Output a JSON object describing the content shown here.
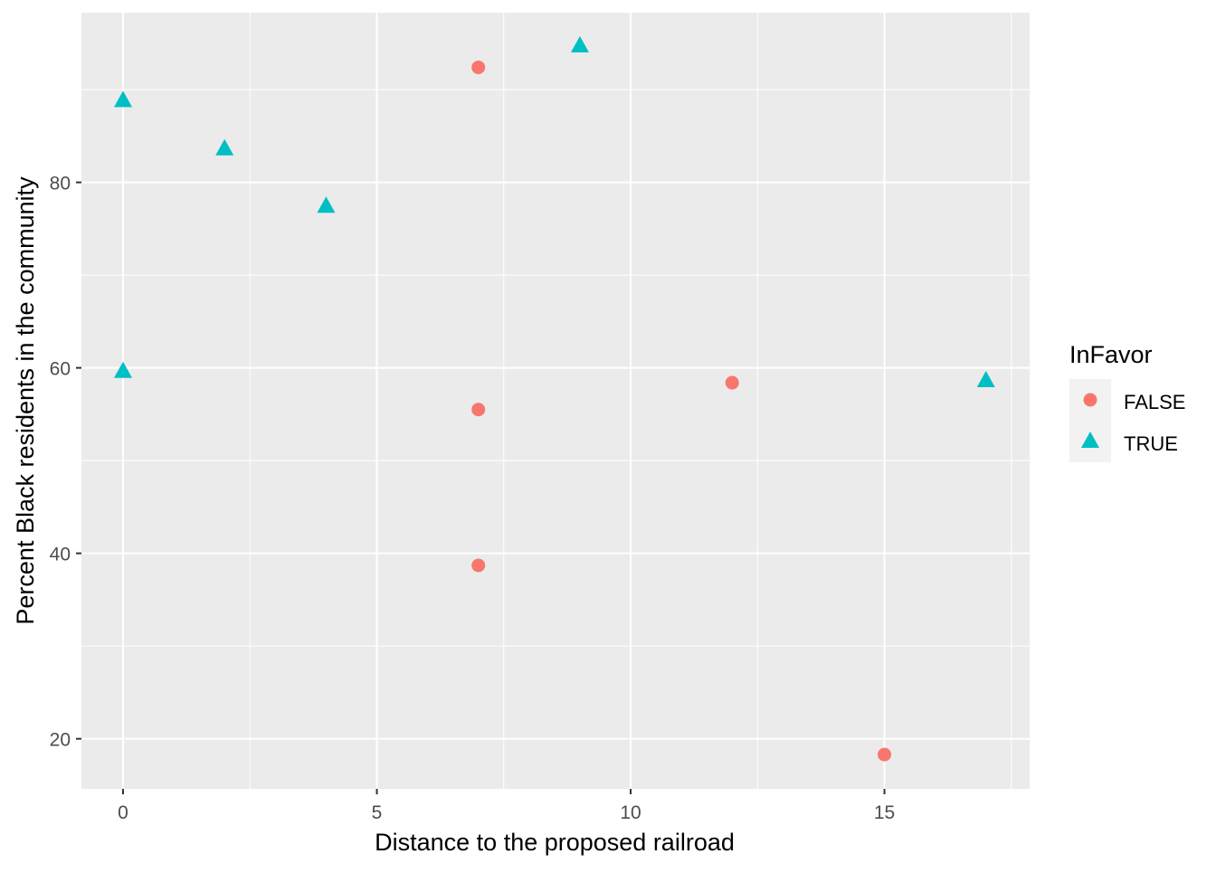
{
  "chart_data": {
    "type": "scatter",
    "title": "",
    "xlabel": "Distance to the proposed railroad",
    "ylabel": "Percent Black residents in the community",
    "xlim": [
      -0.82,
      17.86
    ],
    "ylim": [
      14.6,
      98.3
    ],
    "x_ticks": [
      0,
      5,
      10,
      15
    ],
    "y_ticks": [
      20,
      40,
      60,
      80
    ],
    "grid": true,
    "legend": {
      "title": "InFavor",
      "placement": "right"
    },
    "series": [
      {
        "name": "FALSE",
        "color": "#F8766D",
        "shape": "circle",
        "points": [
          {
            "x": 7,
            "y": 92.4
          },
          {
            "x": 7,
            "y": 55.5
          },
          {
            "x": 7,
            "y": 38.7
          },
          {
            "x": 12,
            "y": 58.4
          },
          {
            "x": 15,
            "y": 18.3
          }
        ]
      },
      {
        "name": "TRUE",
        "color": "#00BFC4",
        "shape": "triangle",
        "points": [
          {
            "x": 0,
            "y": 88.8
          },
          {
            "x": 2,
            "y": 83.6
          },
          {
            "x": 4,
            "y": 77.4
          },
          {
            "x": 0,
            "y": 59.6
          },
          {
            "x": 9,
            "y": 94.7
          },
          {
            "x": 17,
            "y": 58.6
          }
        ]
      }
    ]
  }
}
